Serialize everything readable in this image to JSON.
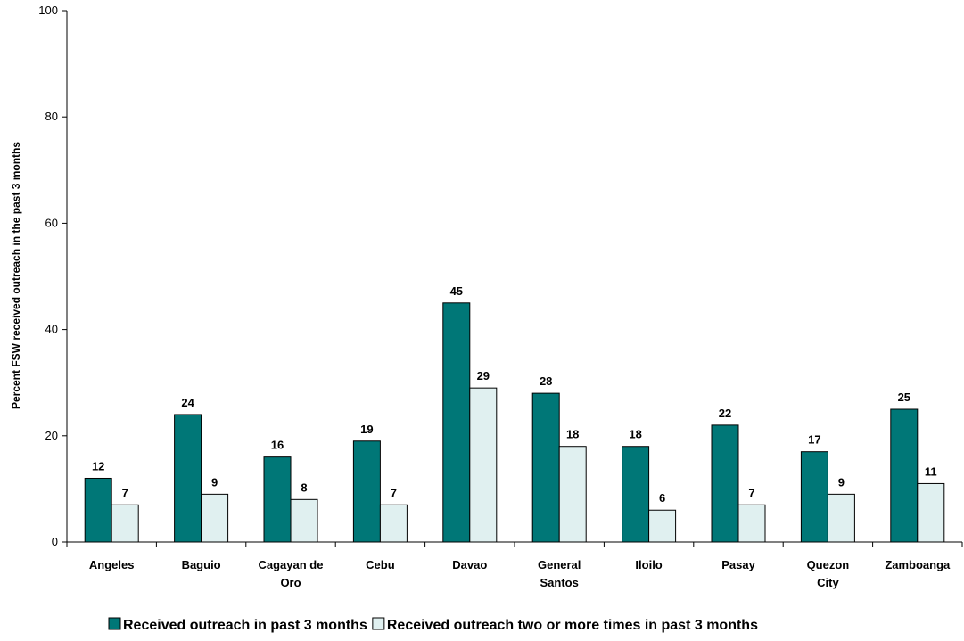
{
  "chart_data": {
    "type": "bar",
    "title": "",
    "xlabel": "",
    "ylabel": "Percent FSW received outreach in the past 3 months",
    "ylim": [
      0,
      100
    ],
    "yticks": [
      0,
      20,
      40,
      60,
      80,
      100
    ],
    "grid": false,
    "legend_position": "bottom",
    "categories": [
      [
        "Angeles"
      ],
      [
        "Baguio"
      ],
      [
        "Cagayan de",
        "Oro"
      ],
      [
        "Cebu"
      ],
      [
        "Davao"
      ],
      [
        "General",
        "Santos"
      ],
      [
        "Iloilo"
      ],
      [
        "Pasay"
      ],
      [
        "Quezon",
        "City"
      ],
      [
        "Zamboanga"
      ]
    ],
    "series": [
      {
        "name": "Received outreach in past 3 months",
        "color": "#007777",
        "values": [
          12,
          24,
          16,
          19,
          45,
          28,
          18,
          22,
          17,
          25
        ]
      },
      {
        "name": "Received outreach two or more times in past 3 months",
        "color": "#e0f0f0",
        "values": [
          7,
          9,
          8,
          7,
          29,
          18,
          6,
          7,
          9,
          11
        ]
      }
    ]
  }
}
